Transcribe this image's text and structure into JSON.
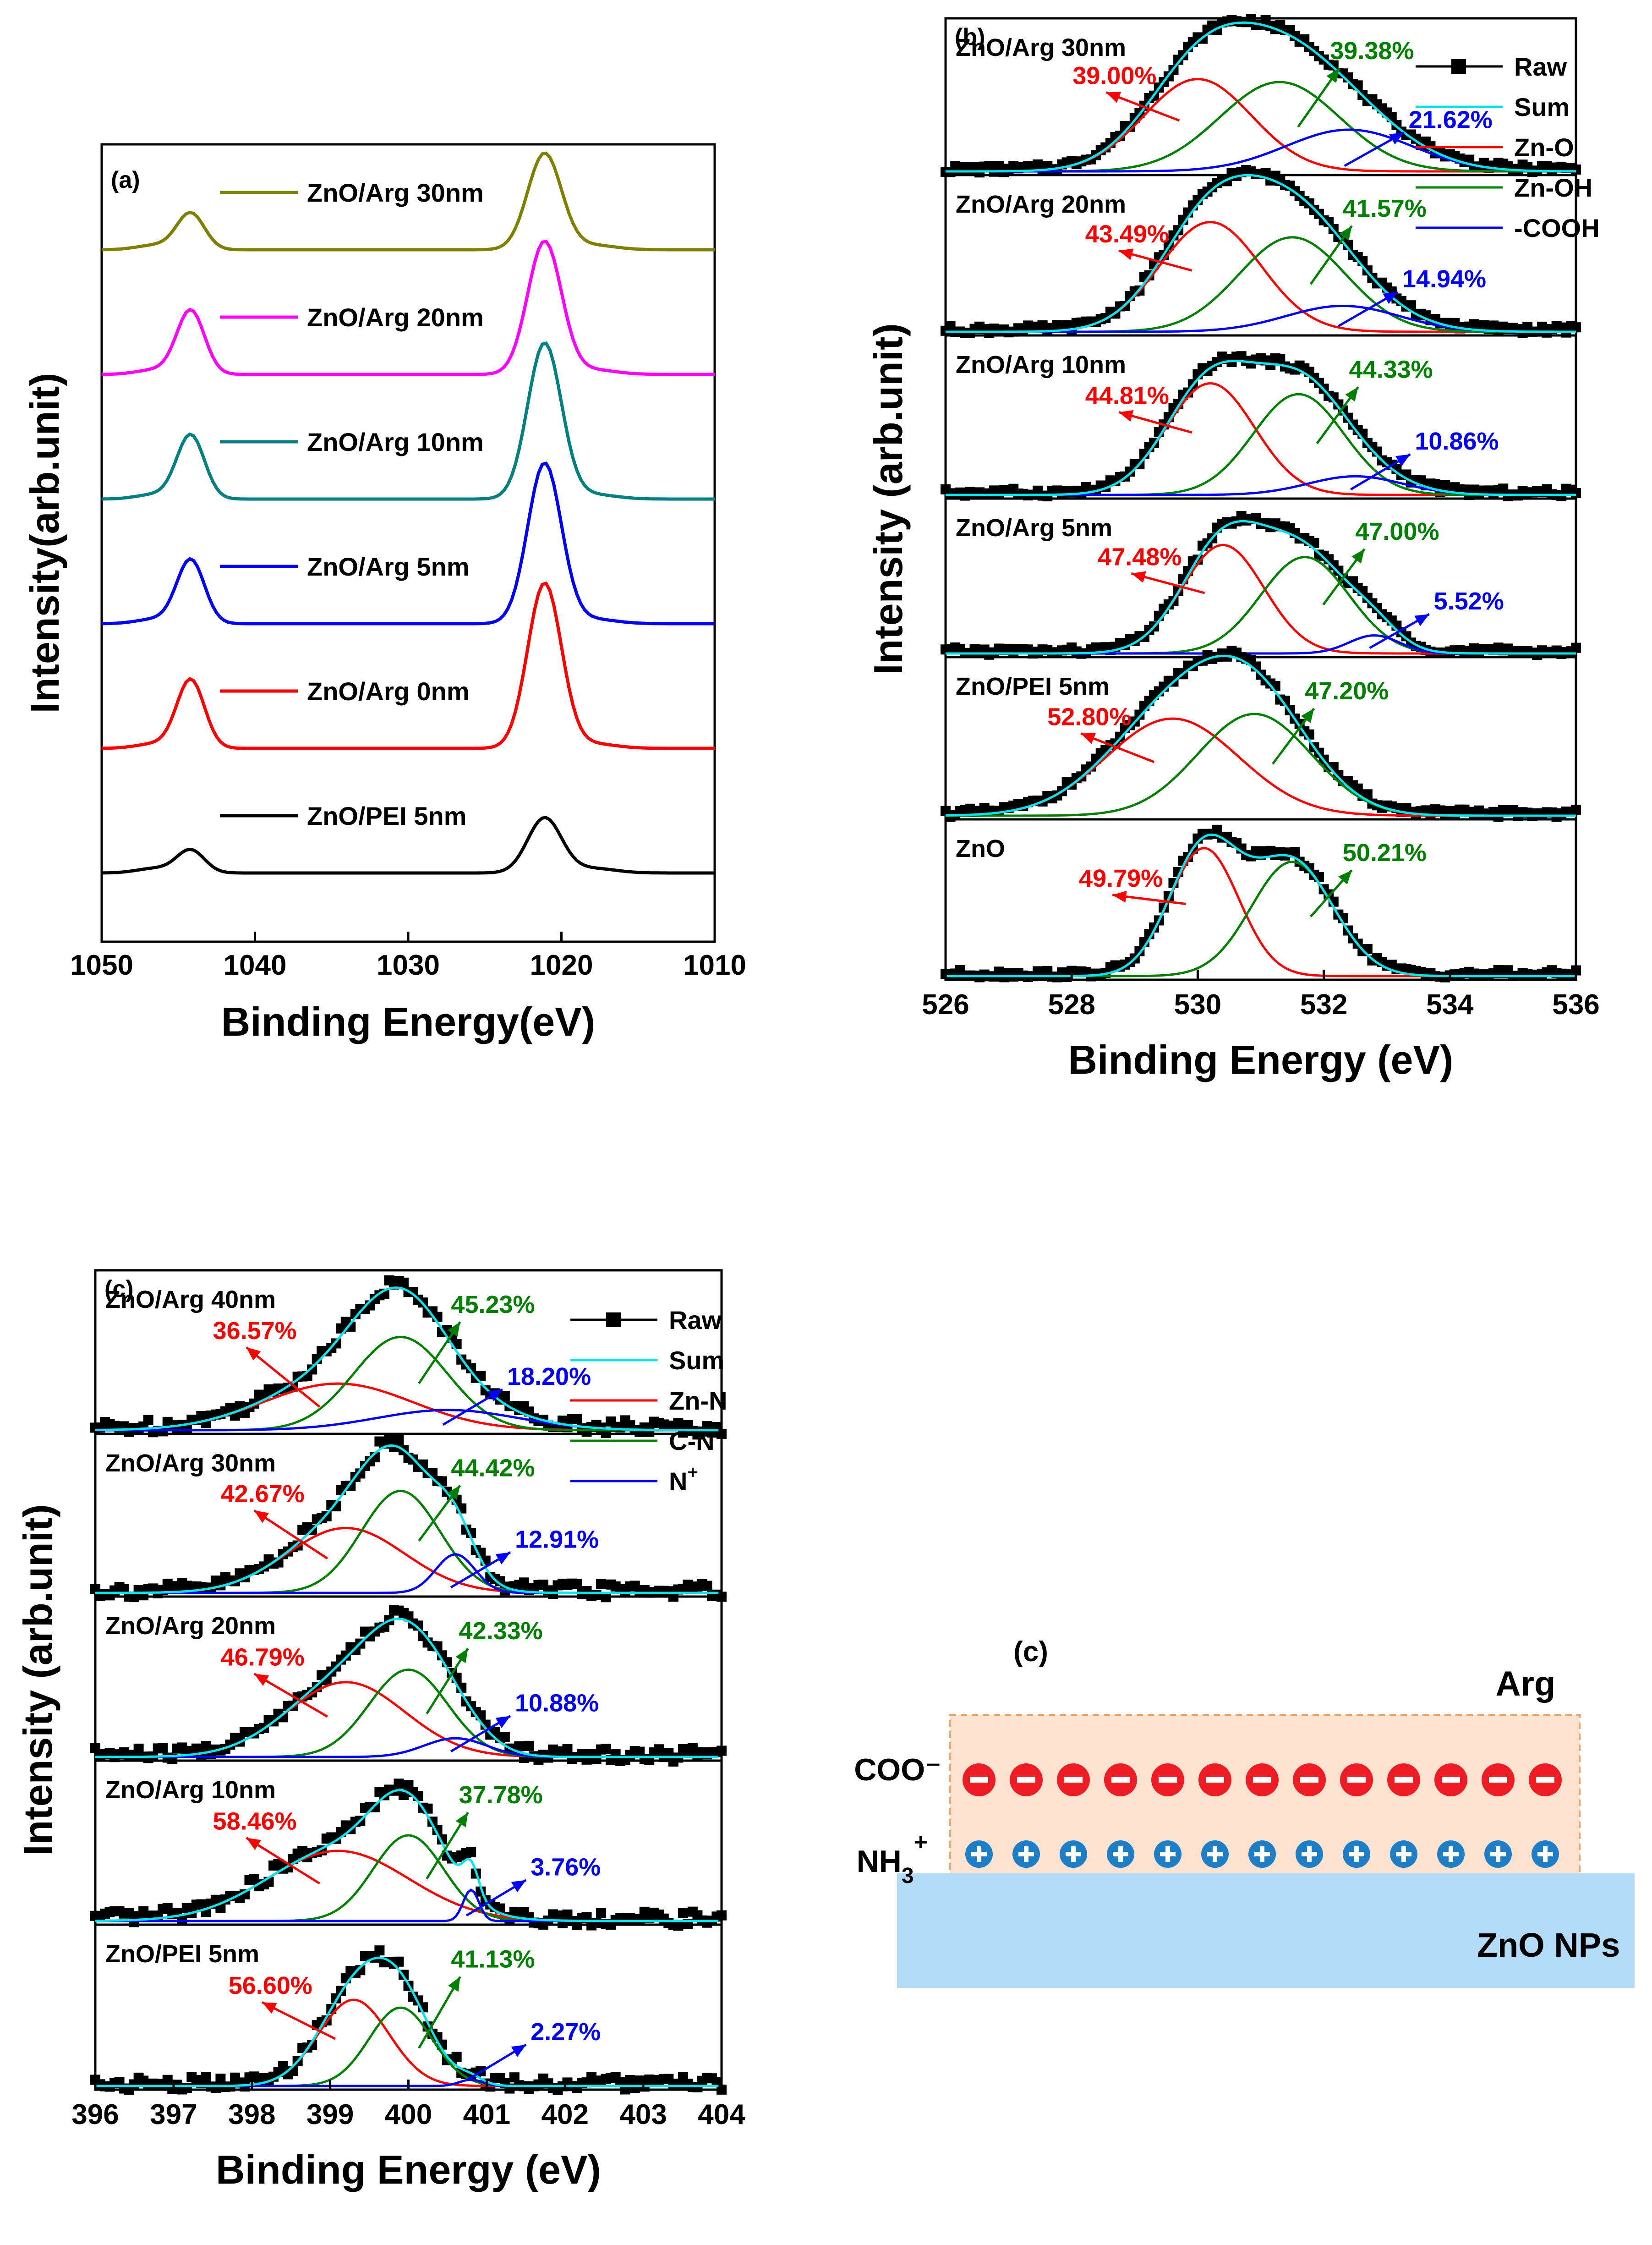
{
  "chart_data": [
    {
      "id": "a",
      "type": "line",
      "panel_label": "(a)",
      "xlabel": "Binding Energy(eV)",
      "ylabel": "Intensity(arb.unit)",
      "xlim": [
        1050,
        1010
      ],
      "xticks": [
        "1050",
        "1040",
        "1030",
        "1020",
        "1010"
      ],
      "tick_values": [
        1050,
        1040,
        1030,
        1020,
        1010
      ],
      "peak_positions_eV": [
        1044.2,
        1021.1
      ],
      "series": [
        {
          "name": "ZnO/Arg 30nm",
          "color": "#808000",
          "offset": 5,
          "peak1": 0.16,
          "peak2": 0.42
        },
        {
          "name": "ZnO/Arg 20nm",
          "color": "#ff00ff",
          "offset": 4,
          "peak1": 0.28,
          "peak2": 0.58
        },
        {
          "name": "ZnO/Arg 10nm",
          "color": "#008080",
          "offset": 3,
          "peak1": 0.28,
          "peak2": 0.68
        },
        {
          "name": "ZnO/Arg 5nm",
          "color": "#0000ff",
          "offset": 2,
          "peak1": 0.28,
          "peak2": 0.7
        },
        {
          "name": "ZnO/Arg 0nm",
          "color": "#ff0000",
          "offset": 1,
          "peak1": 0.3,
          "peak2": 0.72
        },
        {
          "name": "ZnO/PEI 5nm",
          "color": "#000000",
          "offset": 0,
          "peak1": 0.1,
          "peak2": 0.24
        }
      ]
    },
    {
      "id": "b",
      "type": "line",
      "panel_label": "(b)",
      "xlabel": "Binding Energy (eV)",
      "ylabel": "Intensity (arb.unit)",
      "xlim": [
        526,
        536
      ],
      "xticks": [
        "526",
        "528",
        "530",
        "532",
        "534",
        "536"
      ],
      "tick_values": [
        526,
        528,
        530,
        532,
        534,
        536
      ],
      "legend": [
        {
          "label": "Raw",
          "color": "#000000",
          "marker": "square"
        },
        {
          "label": "Sum",
          "color": "#00e5ee"
        },
        {
          "label": "Zn-O",
          "color": "#ff0000"
        },
        {
          "label": "Zn-OH",
          "color": "#008000"
        },
        {
          "label": "-COOH",
          "color": "#0000ff"
        }
      ],
      "subpanels": [
        {
          "name": "ZnO/Arg 30nm",
          "components": [
            {
              "label": "39.00%",
              "type": "Zn-O",
              "center": 530.0,
              "width": 0.85,
              "height": 0.62
            },
            {
              "label": "39.38%",
              "type": "Zn-OH",
              "center": 531.3,
              "width": 0.95,
              "height": 0.6
            },
            {
              "label": "21.62%",
              "type": "-COOH",
              "center": 532.4,
              "width": 1.0,
              "height": 0.28
            }
          ]
        },
        {
          "name": "ZnO/Arg 20nm",
          "components": [
            {
              "label": "43.49%",
              "type": "Zn-O",
              "center": 530.2,
              "width": 0.8,
              "height": 0.72
            },
            {
              "label": "41.57%",
              "type": "Zn-OH",
              "center": 531.5,
              "width": 0.85,
              "height": 0.62
            },
            {
              "label": "14.94%",
              "type": "-COOH",
              "center": 532.3,
              "width": 0.9,
              "height": 0.17
            }
          ]
        },
        {
          "name": "ZnO/Arg 10nm",
          "components": [
            {
              "label": "44.81%",
              "type": "Zn-O",
              "center": 530.2,
              "width": 0.7,
              "height": 0.72
            },
            {
              "label": "44.33%",
              "type": "Zn-OH",
              "center": 531.6,
              "width": 0.72,
              "height": 0.65
            },
            {
              "label": "10.86%",
              "type": "-COOH",
              "center": 532.5,
              "width": 0.75,
              "height": 0.12
            }
          ]
        },
        {
          "name": "ZnO/Arg 5nm",
          "components": [
            {
              "label": "47.48%",
              "type": "Zn-O",
              "center": 530.4,
              "width": 0.65,
              "height": 0.72
            },
            {
              "label": "47.00%",
              "type": "Zn-OH",
              "center": 531.7,
              "width": 0.7,
              "height": 0.64
            },
            {
              "label": "5.52%",
              "type": "-COOH",
              "center": 532.8,
              "width": 0.4,
              "height": 0.12
            }
          ]
        },
        {
          "name": "ZnO/PEI 5nm",
          "components": [
            {
              "label": "52.80%",
              "type": "Zn-O",
              "center": 529.6,
              "width": 1.05,
              "height": 0.63
            },
            {
              "label": "47.20%",
              "type": "Zn-OH",
              "center": 530.9,
              "width": 0.9,
              "height": 0.66
            }
          ]
        },
        {
          "name": "ZnO",
          "components": [
            {
              "label": "49.79%",
              "type": "Zn-O",
              "center": 530.1,
              "width": 0.55,
              "height": 0.84
            },
            {
              "label": "50.21%",
              "type": "Zn-OH",
              "center": 531.5,
              "width": 0.65,
              "height": 0.75
            }
          ]
        }
      ]
    },
    {
      "id": "c",
      "type": "line",
      "panel_label": "(c)",
      "xlabel": "Binding Energy (eV)",
      "ylabel": "Intensity (arb.unit)",
      "xlim": [
        396,
        404
      ],
      "xticks": [
        "396",
        "397",
        "398",
        "399",
        "400",
        "401",
        "402",
        "403",
        "404"
      ],
      "tick_values": [
        396,
        397,
        398,
        399,
        400,
        401,
        402,
        403,
        404
      ],
      "legend": [
        {
          "label": "Raw",
          "color": "#000000",
          "marker": "square"
        },
        {
          "label": "Sum",
          "color": "#00e5ee"
        },
        {
          "label": "Zn-N",
          "color": "#ff0000"
        },
        {
          "label": "C-N",
          "color": "#008000"
        },
        {
          "label": "N",
          "sup": "+",
          "color": "#0000ff"
        }
      ],
      "subpanels": [
        {
          "name": "ZnO/Arg 40nm",
          "components": [
            {
              "label": "36.57%",
              "type": "Zn-N",
              "center": 399.1,
              "width": 0.95,
              "height": 0.3
            },
            {
              "label": "45.23%",
              "type": "C-N",
              "center": 399.9,
              "width": 0.6,
              "height": 0.6
            },
            {
              "label": "18.20%",
              "type": "N+",
              "center": 400.5,
              "width": 0.9,
              "height": 0.13
            }
          ]
        },
        {
          "name": "ZnO/Arg 30nm",
          "components": [
            {
              "label": "42.67%",
              "type": "Zn-N",
              "center": 399.2,
              "width": 0.75,
              "height": 0.42
            },
            {
              "label": "44.42%",
              "type": "C-N",
              "center": 399.9,
              "width": 0.5,
              "height": 0.66
            },
            {
              "label": "12.91%",
              "type": "N+",
              "center": 400.6,
              "width": 0.25,
              "height": 0.25
            }
          ]
        },
        {
          "name": "ZnO/Arg 20nm",
          "components": [
            {
              "label": "46.79%",
              "type": "Zn-N",
              "center": 399.2,
              "width": 0.75,
              "height": 0.48
            },
            {
              "label": "42.33%",
              "type": "C-N",
              "center": 400.0,
              "width": 0.5,
              "height": 0.56
            },
            {
              "label": "10.88%",
              "type": "N+",
              "center": 400.6,
              "width": 0.4,
              "height": 0.12
            }
          ]
        },
        {
          "name": "ZnO/Arg 10nm",
          "components": [
            {
              "label": "58.46%",
              "type": "Zn-N",
              "center": 399.1,
              "width": 0.9,
              "height": 0.45
            },
            {
              "label": "37.78%",
              "type": "C-N",
              "center": 400.0,
              "width": 0.45,
              "height": 0.55
            },
            {
              "label": "3.76%",
              "type": "N+",
              "center": 400.8,
              "width": 0.1,
              "height": 0.2
            }
          ]
        },
        {
          "name": "ZnO/PEI 5nm",
          "components": [
            {
              "label": "56.60%",
              "type": "Zn-N",
              "center": 399.3,
              "width": 0.45,
              "height": 0.55
            },
            {
              "label": "41.13%",
              "type": "C-N",
              "center": 399.9,
              "width": 0.4,
              "height": 0.5
            },
            {
              "label": "2.27%",
              "type": "N+",
              "center": 400.8,
              "width": 0.15,
              "height": 0.04
            }
          ]
        }
      ]
    }
  ],
  "schematic": {
    "panel_label": "(c)",
    "top_layer_label": "Arg",
    "negative_label": "COO⁻",
    "positive_label": "NH",
    "positive_sub": "3",
    "positive_sup": "+",
    "bottom_layer_label": "ZnO NPs",
    "charge_count": 13,
    "top_layer_color": "#fde3cf",
    "bottom_layer_color": "#b3dbf7",
    "negative_color": "#ee1c25",
    "positive_color": "#1f7fc6"
  }
}
